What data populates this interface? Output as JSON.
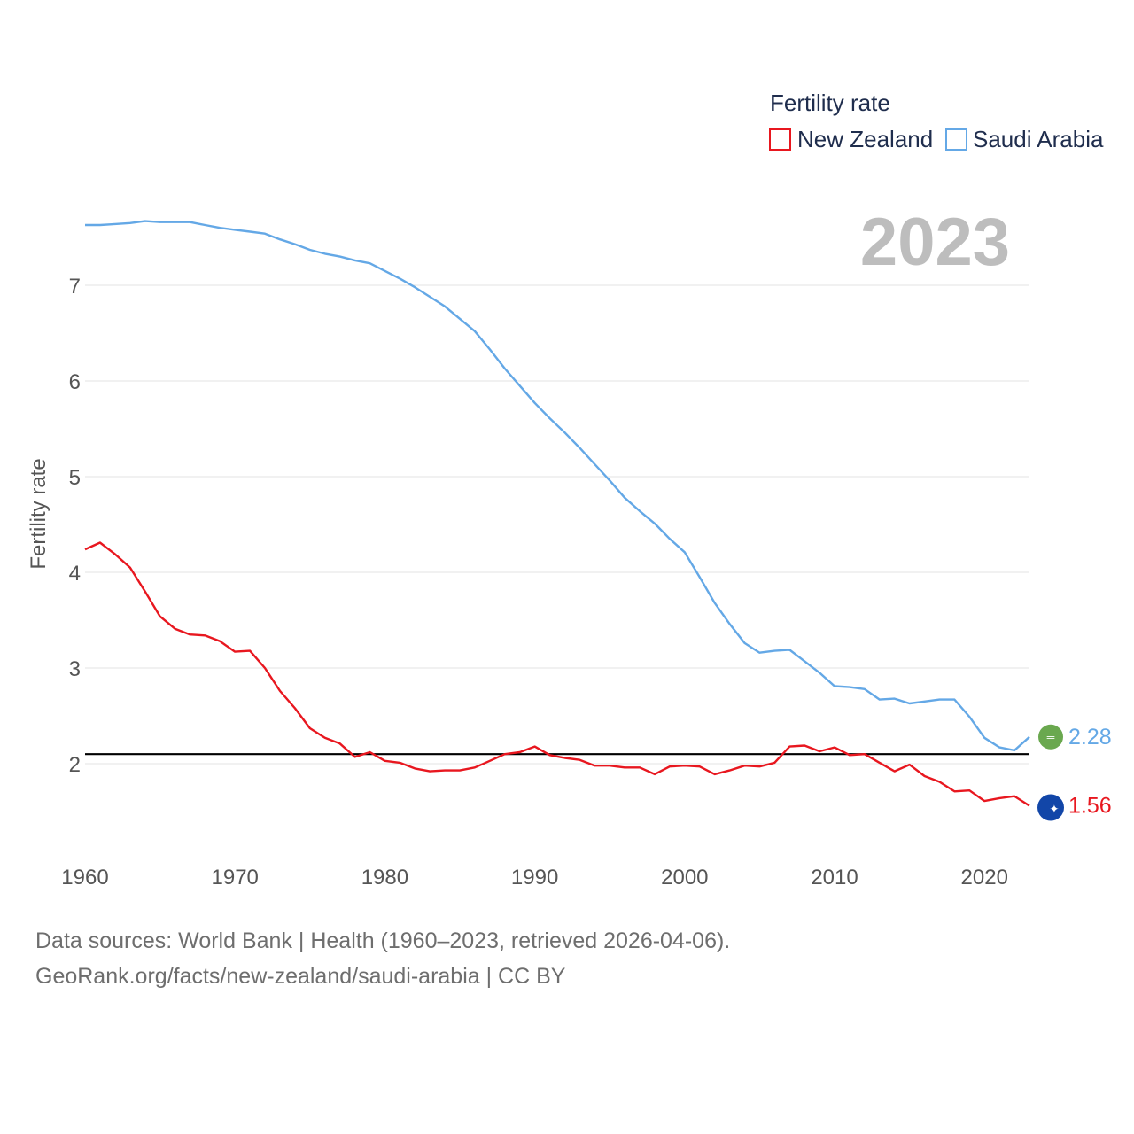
{
  "chart_data": {
    "type": "line",
    "year_label": "2023",
    "legend": {
      "title": "Fertility rate"
    },
    "ylabel": "Fertility rate",
    "xlim": [
      1960,
      2023
    ],
    "ylim": [
      1.0,
      8.0
    ],
    "yticks": [
      2,
      3,
      4,
      5,
      6,
      7
    ],
    "xticks": [
      1960,
      1970,
      1980,
      1990,
      2000,
      2010,
      2020
    ],
    "reference_line": 2.1,
    "x": [
      1960,
      1961,
      1962,
      1963,
      1964,
      1965,
      1966,
      1967,
      1968,
      1969,
      1970,
      1971,
      1972,
      1973,
      1974,
      1975,
      1976,
      1977,
      1978,
      1979,
      1980,
      1981,
      1982,
      1983,
      1984,
      1985,
      1986,
      1987,
      1988,
      1989,
      1990,
      1991,
      1992,
      1993,
      1994,
      1995,
      1996,
      1997,
      1998,
      1999,
      2000,
      2001,
      2002,
      2003,
      2004,
      2005,
      2006,
      2007,
      2008,
      2009,
      2010,
      2011,
      2012,
      2013,
      2014,
      2015,
      2016,
      2017,
      2018,
      2019,
      2020,
      2021,
      2022,
      2023
    ],
    "series": [
      {
        "name": "New Zealand",
        "color": "#e8171f",
        "end_label": "1.56",
        "values": [
          4.24,
          4.31,
          4.19,
          4.05,
          3.8,
          3.54,
          3.41,
          3.35,
          3.34,
          3.28,
          3.17,
          3.18,
          3.0,
          2.76,
          2.58,
          2.37,
          2.27,
          2.21,
          2.07,
          2.12,
          2.03,
          2.01,
          1.95,
          1.92,
          1.93,
          1.93,
          1.96,
          2.03,
          2.1,
          2.12,
          2.18,
          2.09,
          2.06,
          2.04,
          1.98,
          1.98,
          1.96,
          1.96,
          1.89,
          1.97,
          1.98,
          1.97,
          1.89,
          1.93,
          1.98,
          1.97,
          2.01,
          2.18,
          2.19,
          2.13,
          2.17,
          2.09,
          2.1,
          2.01,
          1.92,
          1.99,
          1.87,
          1.81,
          1.71,
          1.72,
          1.61,
          1.64,
          1.66,
          1.56
        ]
      },
      {
        "name": "Saudi Arabia",
        "color": "#64a8e6",
        "end_label": "2.28",
        "values": [
          7.63,
          7.63,
          7.64,
          7.65,
          7.67,
          7.66,
          7.66,
          7.66,
          7.63,
          7.6,
          7.58,
          7.56,
          7.54,
          7.48,
          7.43,
          7.37,
          7.33,
          7.3,
          7.26,
          7.23,
          7.15,
          7.07,
          6.98,
          6.88,
          6.78,
          6.65,
          6.52,
          6.33,
          6.13,
          5.95,
          5.77,
          5.61,
          5.46,
          5.3,
          5.13,
          4.96,
          4.78,
          4.64,
          4.51,
          4.35,
          4.21,
          3.95,
          3.68,
          3.46,
          3.26,
          3.16,
          3.18,
          3.19,
          3.07,
          2.95,
          2.81,
          2.8,
          2.78,
          2.67,
          2.68,
          2.63,
          2.65,
          2.67,
          2.67,
          2.49,
          2.27,
          2.17,
          2.14,
          2.28
        ]
      }
    ]
  },
  "source": {
    "line1": "Data sources: World Bank | Health (1960–2023, retrieved 2026-04-06).",
    "line2": "GeoRank.org/facts/new-zealand/saudi-arabia | CC BY"
  }
}
